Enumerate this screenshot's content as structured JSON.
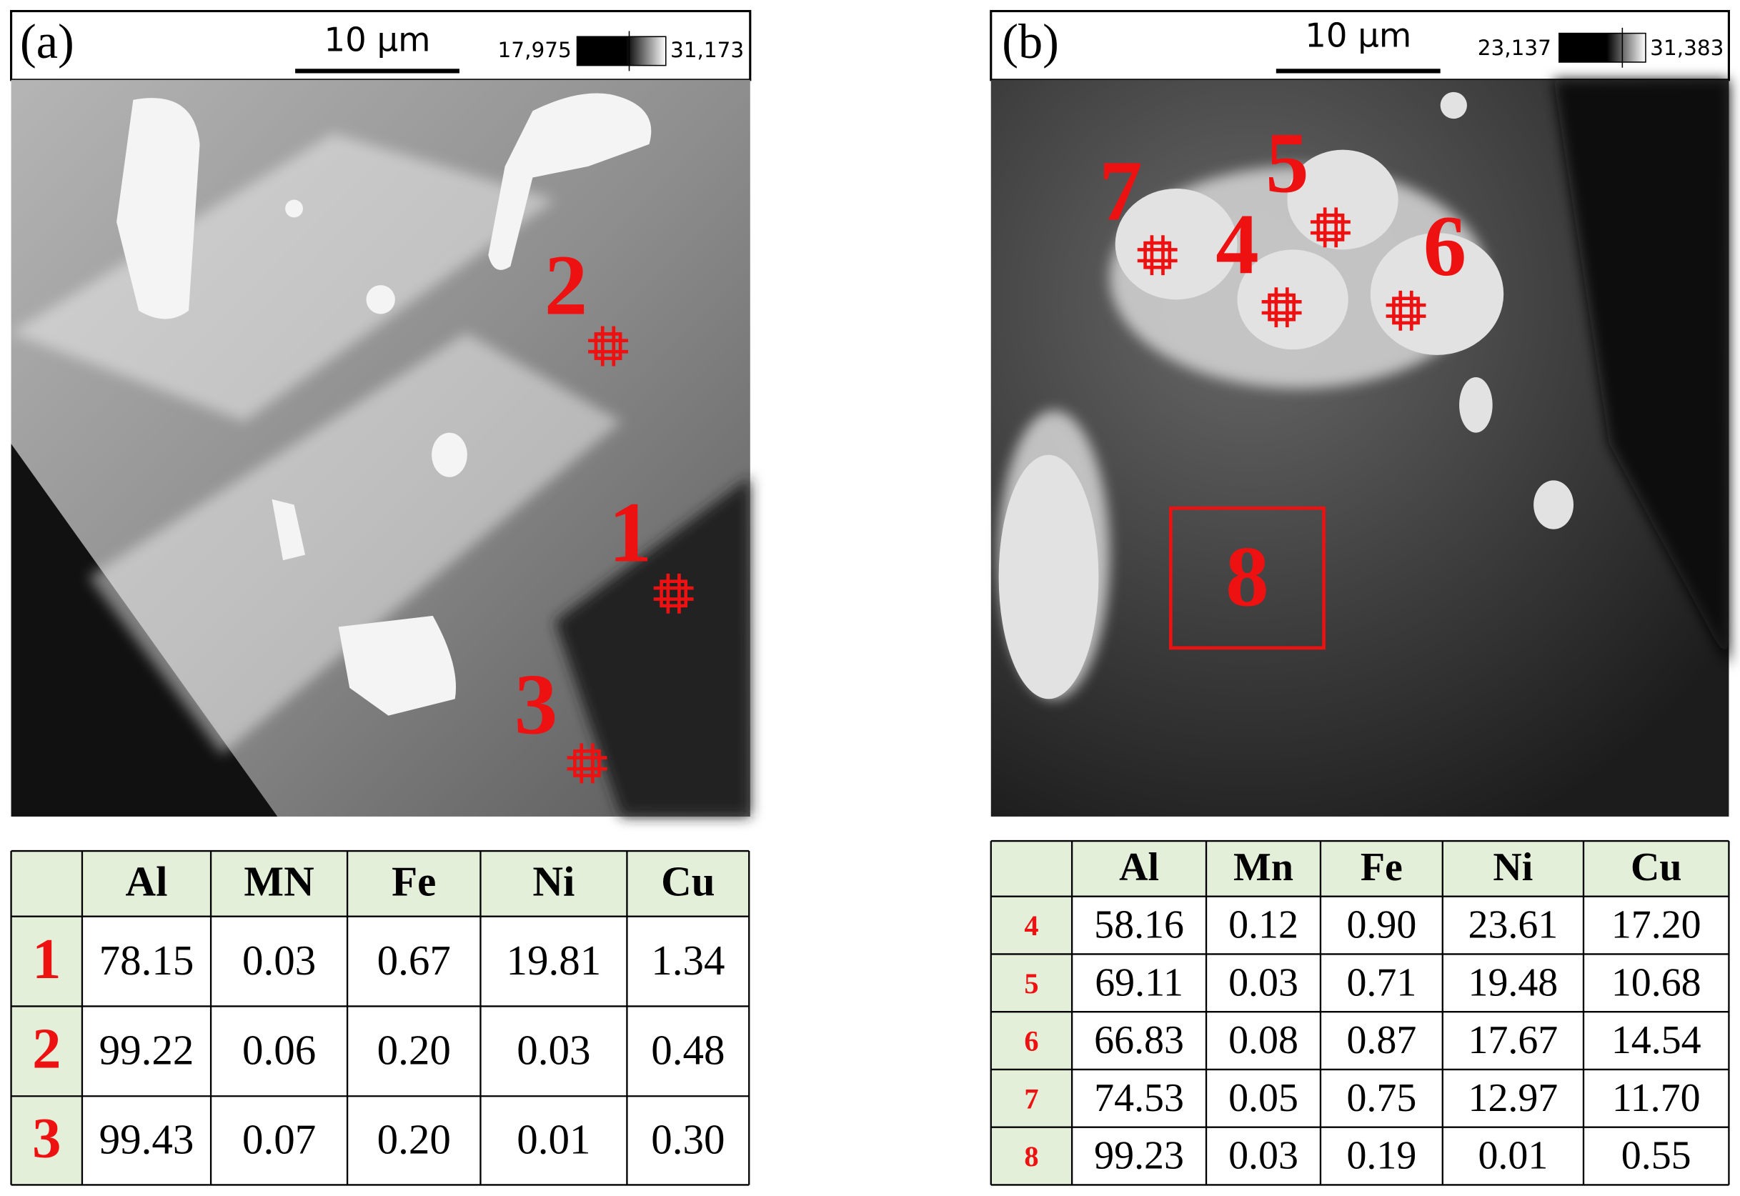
{
  "panels": [
    {
      "label": "(a)",
      "scale_bar": "10 µm",
      "colorbar": {
        "min": "17,975",
        "max": "31,173"
      },
      "markers": [
        "2",
        "1",
        "3"
      ],
      "table": {
        "header": [
          "Al",
          "MN",
          "Fe",
          "Ni",
          "Cu"
        ],
        "rows": [
          [
            "1",
            "78.15",
            "0.03",
            "0.67",
            "19.81",
            "1.34"
          ],
          [
            "2",
            "99.22",
            "0.06",
            "0.20",
            "0.03",
            "0.48"
          ],
          [
            "3",
            "99.43",
            "0.07",
            "0.20",
            "0.01",
            "0.30"
          ]
        ]
      }
    },
    {
      "label": "(b)",
      "scale_bar": "10 µm",
      "colorbar": {
        "min": "23,137",
        "max": "31,383"
      },
      "markers": [
        "7",
        "5",
        "4",
        "6",
        "8"
      ],
      "table": {
        "header": [
          "Al",
          "Mn",
          "Fe",
          "Ni",
          "Cu"
        ],
        "rows": [
          [
            "4",
            "58.16",
            "0.12",
            "0.90",
            "23.61",
            "17.20"
          ],
          [
            "5",
            "69.11",
            "0.03",
            "0.71",
            "19.48",
            "10.68"
          ],
          [
            "6",
            "66.83",
            "0.08",
            "0.87",
            "17.67",
            "14.54"
          ],
          [
            "7",
            "74.53",
            "0.05",
            "0.75",
            "12.97",
            "11.70"
          ],
          [
            "8",
            "99.23",
            "0.03",
            "0.19",
            "0.01",
            "0.55"
          ]
        ]
      }
    }
  ]
}
